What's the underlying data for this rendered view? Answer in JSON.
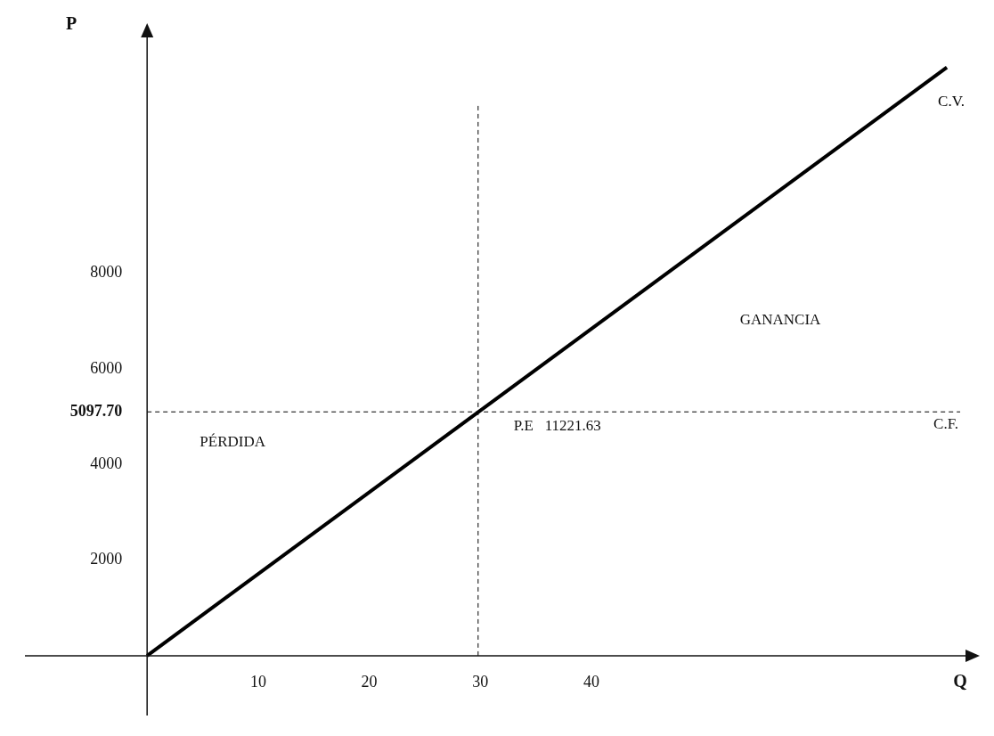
{
  "chart_data": {
    "type": "line",
    "xlabel": "Q",
    "ylabel": "P",
    "x": [
      0,
      72
    ],
    "series": [
      {
        "name": "C.V.",
        "color": "#000000",
        "values": [
          0,
          12300
        ]
      }
    ],
    "xlim": [
      -11,
      74
    ],
    "ylim": [
      -1250,
      13000
    ],
    "xticks": [
      10,
      20,
      30,
      40
    ],
    "yticks": [
      2000,
      4000,
      {
        "value": 5097.7,
        "label": "5097.70"
      },
      6000,
      8000
    ],
    "ref_lines": [
      {
        "axis": "y",
        "value": 5097.7,
        "label": "C.F.",
        "line_style": "dashed",
        "color": "#000000"
      },
      {
        "axis": "x",
        "value": 29.8,
        "line_style": "dashed",
        "color": "#000000"
      }
    ],
    "annotations": [
      {
        "text": "P.E   11221.63",
        "x": 29.8,
        "y": 5097.7
      },
      "GANANCIA",
      "PÉRDIDA"
    ],
    "grid": false,
    "legend": false,
    "marker": "none",
    "line_style": "solid"
  }
}
